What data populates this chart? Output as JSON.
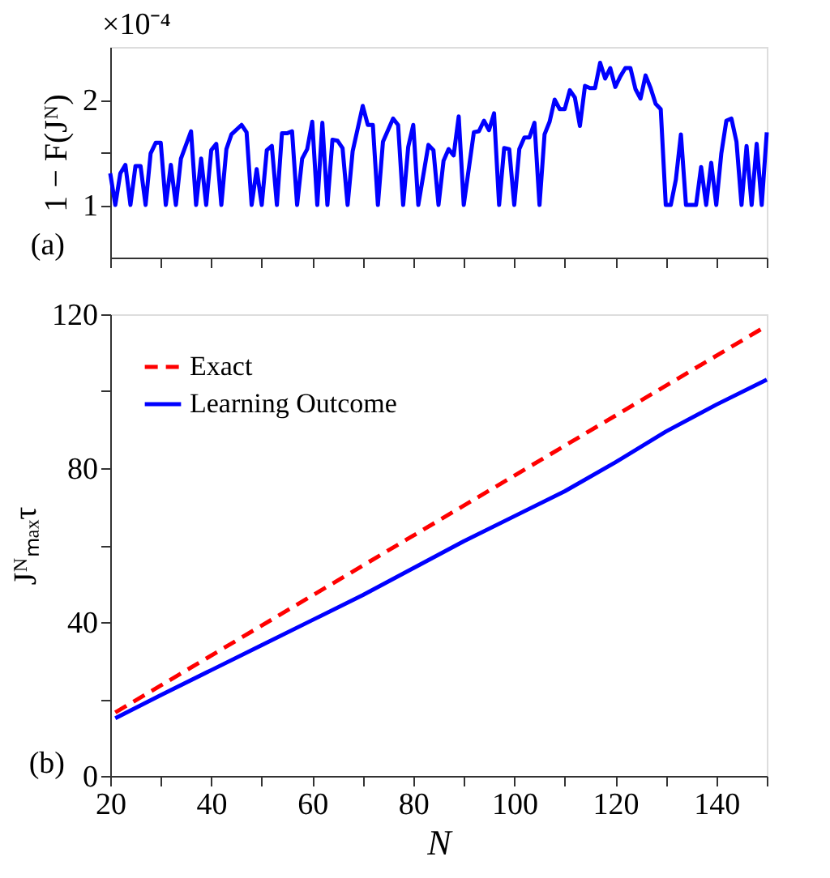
{
  "chart_data": [
    {
      "type": "line",
      "ylabel": "1 − F(Jᴺ)",
      "annotations": [
        "×10⁻⁴",
        "(a)"
      ],
      "xlim": [
        20,
        150
      ],
      "ylim": [
        0.5,
        2.5
      ],
      "xticks": [
        {
          "value": 20,
          "label": null
        },
        {
          "value": 30,
          "label": null
        },
        {
          "value": 40,
          "label": null
        },
        {
          "value": 50,
          "label": null
        },
        {
          "value": 60,
          "label": null
        },
        {
          "value": 70,
          "label": null
        },
        {
          "value": 80,
          "label": null
        },
        {
          "value": 90,
          "label": null
        },
        {
          "value": 100,
          "label": null
        },
        {
          "value": 110,
          "label": null
        },
        {
          "value": 120,
          "label": null
        },
        {
          "value": 130,
          "label": null
        },
        {
          "value": 140,
          "label": null
        },
        {
          "value": 150,
          "label": null
        }
      ],
      "yticks": [
        1,
        {
          "value": 1.5,
          "label": null
        },
        2
      ],
      "tick_labels": "y",
      "grid": false,
      "legend": false,
      "series": [
        {
          "color": "#0000ff",
          "line_style": "solid",
          "x": [
            20,
            21,
            22,
            23,
            24,
            25,
            26,
            27,
            28,
            29,
            30,
            31,
            32,
            33,
            34,
            36,
            37,
            38,
            39,
            40,
            41,
            42,
            43,
            44,
            46,
            47,
            48,
            49,
            50,
            51,
            52,
            53,
            54,
            55,
            56,
            57,
            58,
            59,
            60,
            61,
            62,
            63,
            64,
            65,
            66,
            67,
            68,
            70,
            71,
            72,
            73,
            74,
            76,
            77,
            78,
            79,
            80,
            81,
            83,
            84,
            85,
            86,
            87,
            88,
            89,
            90,
            92,
            93,
            94,
            95,
            96,
            97,
            98,
            99,
            100,
            101,
            102,
            103,
            104,
            105,
            106,
            107,
            108,
            109,
            110,
            111,
            112,
            113,
            114,
            115,
            116,
            117,
            118,
            119,
            120,
            121,
            122,
            123,
            124,
            125,
            126,
            127,
            128,
            129,
            130,
            131,
            132,
            133,
            134,
            136,
            137,
            138,
            139,
            140,
            141,
            142,
            143,
            144,
            145,
            146,
            147,
            148,
            149,
            150
          ],
          "values": [
            1.3,
            1.0,
            1.3,
            1.38,
            1.0,
            1.37,
            1.37,
            1.0,
            1.49,
            1.59,
            1.59,
            1.0,
            1.38,
            1.0,
            1.44,
            1.7,
            1.0,
            1.44,
            1.0,
            1.52,
            1.58,
            1.0,
            1.53,
            1.67,
            1.76,
            1.69,
            1.0,
            1.34,
            1.0,
            1.52,
            1.56,
            1.0,
            1.68,
            1.68,
            1.7,
            1.0,
            1.44,
            1.53,
            1.79,
            1.0,
            1.78,
            1.0,
            1.62,
            1.61,
            1.54,
            1.0,
            1.51,
            1.94,
            1.76,
            1.76,
            1.0,
            1.6,
            1.82,
            1.76,
            1.0,
            1.55,
            1.76,
            1.0,
            1.57,
            1.52,
            1.0,
            1.42,
            1.53,
            1.47,
            1.84,
            1.0,
            1.69,
            1.7,
            1.8,
            1.71,
            1.87,
            1.0,
            1.54,
            1.53,
            1.0,
            1.53,
            1.64,
            1.64,
            1.78,
            1.0,
            1.67,
            1.79,
            2.0,
            1.91,
            1.91,
            2.09,
            2.02,
            1.75,
            2.13,
            2.11,
            2.11,
            2.35,
            2.2,
            2.3,
            2.12,
            2.22,
            2.3,
            2.3,
            2.1,
            2.01,
            2.23,
            2.11,
            1.96,
            1.91,
            1.0,
            1.0,
            1.24,
            1.67,
            1.0,
            1.0,
            1.36,
            1.0,
            1.4,
            1.0,
            1.49,
            1.8,
            1.82,
            1.6,
            1.0,
            1.56,
            1.0,
            1.58,
            1.0,
            1.69
          ]
        }
      ]
    },
    {
      "type": "line",
      "xlabel": "N",
      "ylabel": "Jᴺₘₐₓτ",
      "annotations": [
        "(b)"
      ],
      "xlim": [
        20,
        150
      ],
      "ylim": [
        0,
        120
      ],
      "xticks": [
        20,
        {
          "value": 30,
          "label": null
        },
        40,
        {
          "value": 50,
          "label": null
        },
        60,
        {
          "value": 70,
          "label": null
        },
        80,
        {
          "value": 90,
          "label": null
        },
        100,
        {
          "value": 110,
          "label": null
        },
        120,
        {
          "value": 130,
          "label": null
        },
        140,
        {
          "value": 150,
          "label": null
        }
      ],
      "yticks": [
        0,
        {
          "value": 20,
          "label": null
        },
        40,
        {
          "value": 60,
          "label": null
        },
        80,
        {
          "value": 100,
          "label": null
        },
        120
      ],
      "grid": false,
      "legend": "top left",
      "series": [
        {
          "name": "Exact",
          "color": "#ff0000",
          "line_style": "dashed",
          "x": [
            21,
            150
          ],
          "values": [
            16.5,
            117
          ]
        },
        {
          "name": "Learning Outcome",
          "color": "#0000ff",
          "line_style": "solid",
          "x": [
            21,
            30,
            40,
            50,
            60,
            70,
            80,
            90,
            100,
            110,
            120,
            130,
            140,
            150
          ],
          "values": [
            15,
            21,
            27.5,
            34,
            40.5,
            47,
            54,
            61,
            67.5,
            74,
            81.5,
            89.5,
            96.5,
            103
          ]
        }
      ]
    }
  ]
}
